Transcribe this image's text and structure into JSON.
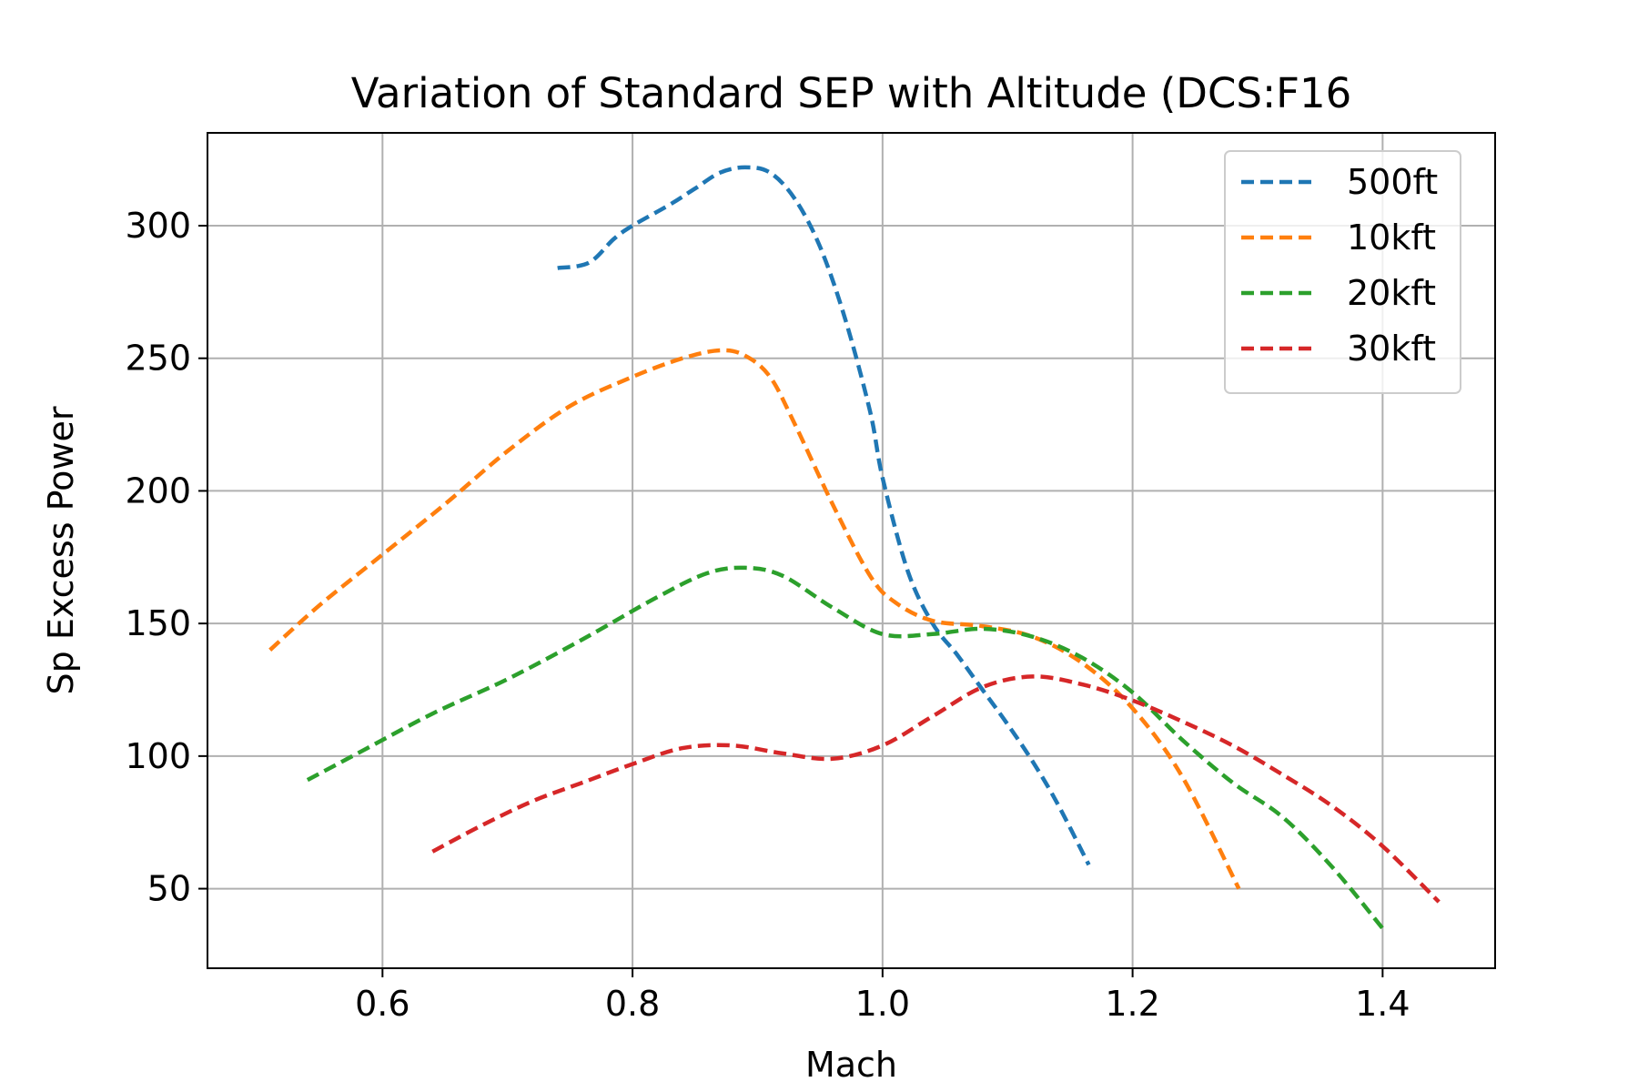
{
  "chart_data": {
    "type": "line",
    "title": "Variation of Standard SEP  with Altitude (DCS:F16",
    "xlabel": "Mach",
    "ylabel": "Sp Excess Power",
    "xlim": [
      0.46,
      1.49
    ],
    "ylim": [
      20,
      335
    ],
    "xticks": [
      0.6,
      0.8,
      1.0,
      1.2,
      1.4
    ],
    "xtick_labels": [
      "0.6",
      "0.8",
      "1.0",
      "1.2",
      "1.4"
    ],
    "yticks": [
      50,
      100,
      150,
      200,
      250,
      300
    ],
    "ytick_labels": [
      "50",
      "100",
      "150",
      "200",
      "250",
      "300"
    ],
    "grid": true,
    "legend_position": "top-right",
    "line_style": "dashed",
    "series": [
      {
        "name": "500ft",
        "color": "#1f77b4",
        "x": [
          0.74,
          0.765,
          0.785,
          0.8,
          0.83,
          0.85,
          0.87,
          0.89,
          0.91,
          0.93,
          0.95,
          0.97,
          0.99,
          1.0,
          1.02,
          1.04,
          1.06,
          1.08,
          1.1,
          1.12,
          1.14,
          1.165
        ],
        "y": [
          284,
          286,
          295,
          300,
          308,
          314,
          320,
          322,
          320,
          310,
          292,
          265,
          230,
          205,
          170,
          150,
          138,
          125,
          112,
          98,
          82,
          59
        ]
      },
      {
        "name": "10kft",
        "color": "#ff7f0e",
        "x": [
          0.51,
          0.55,
          0.6,
          0.65,
          0.7,
          0.75,
          0.8,
          0.84,
          0.87,
          0.89,
          0.91,
          0.93,
          0.96,
          0.99,
          1.01,
          1.04,
          1.08,
          1.12,
          1.16,
          1.2,
          1.24,
          1.285
        ],
        "y": [
          140,
          157,
          176,
          195,
          215,
          232,
          243,
          250,
          253,
          251,
          243,
          225,
          195,
          168,
          158,
          151,
          149,
          145,
          135,
          118,
          92,
          50
        ]
      },
      {
        "name": "20kft",
        "color": "#2ca02c",
        "x": [
          0.54,
          0.58,
          0.64,
          0.7,
          0.76,
          0.82,
          0.86,
          0.89,
          0.92,
          0.96,
          1.0,
          1.04,
          1.08,
          1.12,
          1.16,
          1.2,
          1.24,
          1.28,
          1.32,
          1.36,
          1.4
        ],
        "y": [
          91,
          101,
          116,
          129,
          144,
          160,
          169,
          171,
          168,
          156,
          146,
          146,
          148,
          145,
          137,
          124,
          106,
          90,
          77,
          58,
          35
        ]
      },
      {
        "name": "30kft",
        "color": "#d62728",
        "x": [
          0.64,
          0.68,
          0.72,
          0.76,
          0.8,
          0.84,
          0.88,
          0.92,
          0.96,
          1.0,
          1.04,
          1.08,
          1.12,
          1.16,
          1.2,
          1.24,
          1.28,
          1.32,
          1.36,
          1.4,
          1.445
        ],
        "y": [
          64,
          74,
          83,
          90,
          97,
          103,
          104,
          101,
          99,
          104,
          115,
          126,
          130,
          127,
          121,
          113,
          104,
          93,
          81,
          66,
          45
        ]
      }
    ]
  }
}
